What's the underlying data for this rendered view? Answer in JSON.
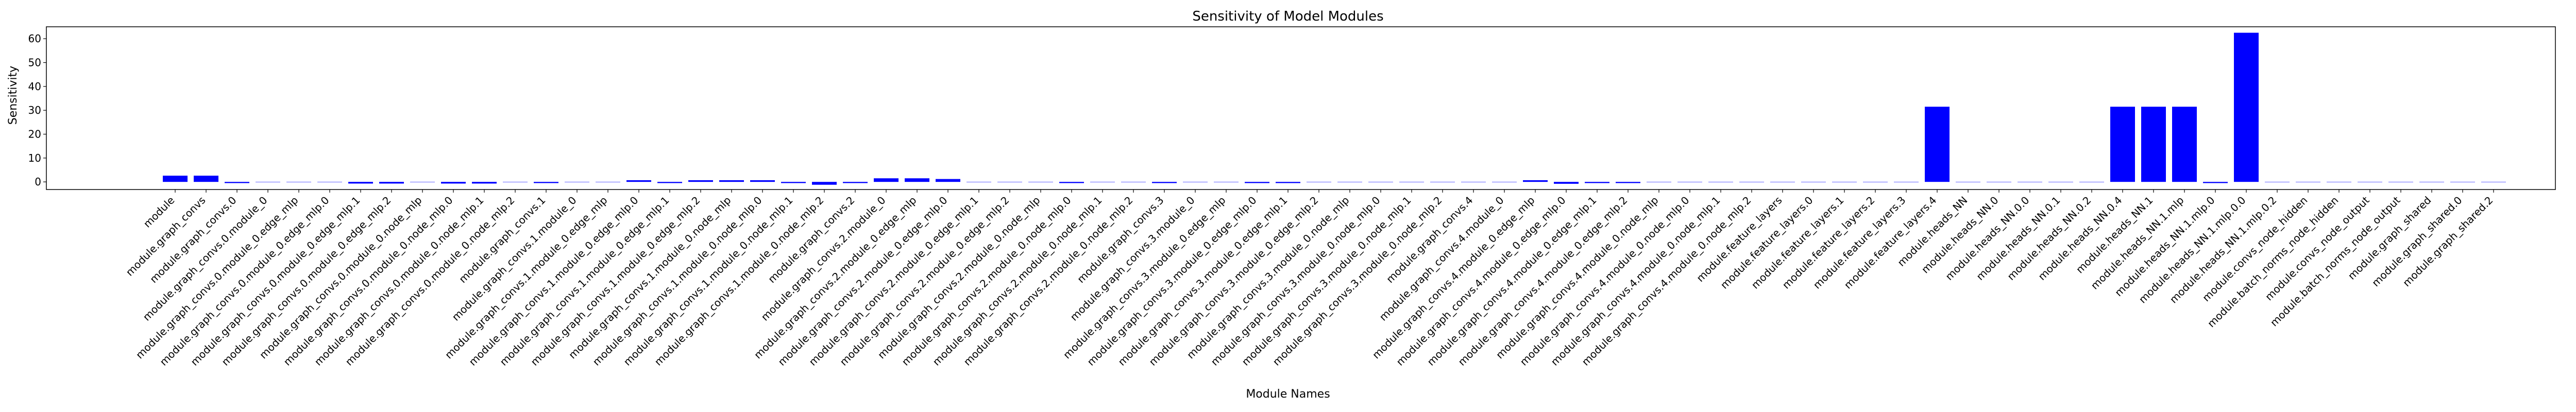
{
  "chart_data": {
    "type": "bar",
    "title": "Sensitivity of Model Modules",
    "xlabel": "Module Names",
    "ylabel": "Sensitivity",
    "ylim": [
      -3.2,
      65
    ],
    "yticks": [
      0,
      10,
      20,
      30,
      40,
      50,
      60
    ],
    "bar_color": "#0000ff",
    "categories": [
      "module",
      "module.graph_convs",
      "module.graph_convs.0",
      "module.graph_convs.0.module_0",
      "module.graph_convs.0.module_0.edge_mlp",
      "module.graph_convs.0.module_0.edge_mlp.0",
      "module.graph_convs.0.module_0.edge_mlp.1",
      "module.graph_convs.0.module_0.edge_mlp.2",
      "module.graph_convs.0.module_0.node_mlp",
      "module.graph_convs.0.module_0.node_mlp.0",
      "module.graph_convs.0.module_0.node_mlp.1",
      "module.graph_convs.0.module_0.node_mlp.2",
      "module.graph_convs.1",
      "module.graph_convs.1.module_0",
      "module.graph_convs.1.module_0.edge_mlp",
      "module.graph_convs.1.module_0.edge_mlp.0",
      "module.graph_convs.1.module_0.edge_mlp.1",
      "module.graph_convs.1.module_0.edge_mlp.2",
      "module.graph_convs.1.module_0.node_mlp",
      "module.graph_convs.1.module_0.node_mlp.0",
      "module.graph_convs.1.module_0.node_mlp.1",
      "module.graph_convs.1.module_0.node_mlp.2",
      "module.graph_convs.2",
      "module.graph_convs.2.module_0",
      "module.graph_convs.2.module_0.edge_mlp",
      "module.graph_convs.2.module_0.edge_mlp.0",
      "module.graph_convs.2.module_0.edge_mlp.1",
      "module.graph_convs.2.module_0.edge_mlp.2",
      "module.graph_convs.2.module_0.node_mlp",
      "module.graph_convs.2.module_0.node_mlp.0",
      "module.graph_convs.2.module_0.node_mlp.1",
      "module.graph_convs.2.module_0.node_mlp.2",
      "module.graph_convs.3",
      "module.graph_convs.3.module_0",
      "module.graph_convs.3.module_0.edge_mlp",
      "module.graph_convs.3.module_0.edge_mlp.0",
      "module.graph_convs.3.module_0.edge_mlp.1",
      "module.graph_convs.3.module_0.edge_mlp.2",
      "module.graph_convs.3.module_0.node_mlp",
      "module.graph_convs.3.module_0.node_mlp.0",
      "module.graph_convs.3.module_0.node_mlp.1",
      "module.graph_convs.3.module_0.node_mlp.2",
      "module.graph_convs.4",
      "module.graph_convs.4.module_0",
      "module.graph_convs.4.module_0.edge_mlp",
      "module.graph_convs.4.module_0.edge_mlp.0",
      "module.graph_convs.4.module_0.edge_mlp.1",
      "module.graph_convs.4.module_0.edge_mlp.2",
      "module.graph_convs.4.module_0.node_mlp",
      "module.graph_convs.4.module_0.node_mlp.0",
      "module.graph_convs.4.module_0.node_mlp.1",
      "module.graph_convs.4.module_0.node_mlp.2",
      "module.feature_layers",
      "module.feature_layers.0",
      "module.feature_layers.1",
      "module.feature_layers.2",
      "module.feature_layers.3",
      "module.feature_layers.4",
      "module.heads_NN",
      "module.heads_NN.0",
      "module.heads_NN.0.0",
      "module.heads_NN.0.1",
      "module.heads_NN.0.2",
      "module.heads_NN.0.4",
      "module.heads_NN.1",
      "module.heads_NN.1.mlp",
      "module.heads_NN.1.mlp.0",
      "module.heads_NN.1.mlp.0.0",
      "module.heads_NN.1.mlp.0.2",
      "module.convs_node_hidden",
      "module.batch_norms_node_hidden",
      "module.convs_node_output",
      "module.batch_norms_node_output",
      "module.graph_shared",
      "module.graph_shared.0",
      "module.graph_shared.2"
    ],
    "values": [
      2.6,
      2.6,
      -0.5,
      0,
      0,
      0,
      -0.7,
      -0.7,
      0,
      -0.7,
      -0.7,
      0,
      -0.5,
      0,
      0,
      0.7,
      -0.5,
      0.7,
      0.7,
      0.7,
      -0.5,
      -1.2,
      -0.5,
      1.5,
      1.5,
      1.2,
      0,
      0,
      0,
      -0.5,
      0,
      0,
      -0.5,
      0,
      0,
      -0.5,
      -0.5,
      0,
      0,
      0,
      0,
      0,
      0,
      0,
      0.7,
      -0.8,
      -0.5,
      -0.5,
      0,
      0,
      0,
      0,
      0,
      0,
      0,
      0,
      0,
      31.5,
      0,
      0,
      0,
      0,
      0,
      31.5,
      31.5,
      31.5,
      -0.5,
      62.5,
      0,
      0,
      0,
      0,
      0,
      0,
      0,
      0
    ]
  }
}
